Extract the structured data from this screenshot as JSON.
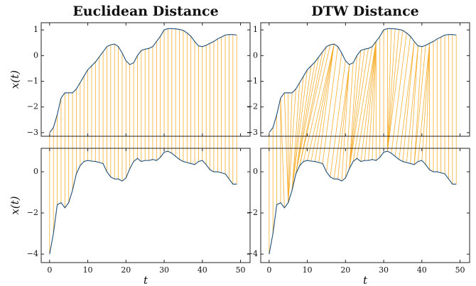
{
  "chart_data": [
    {
      "type": "line",
      "title": "Euclidean Distance",
      "matching": "euclidean",
      "match_color": "#f7ad2a",
      "xlabel": "t",
      "x": [
        0,
        1,
        2,
        3,
        4,
        5,
        6,
        7,
        8,
        9,
        10,
        11,
        12,
        13,
        14,
        15,
        16,
        17,
        18,
        19,
        20,
        21,
        22,
        23,
        24,
        25,
        26,
        27,
        28,
        29,
        30,
        31,
        32,
        33,
        34,
        35,
        36,
        37,
        38,
        39,
        40,
        41,
        42,
        43,
        44,
        45,
        46,
        47,
        48,
        49
      ],
      "xlim": [
        -2.2,
        52.5
      ],
      "xticks": [
        0,
        10,
        20,
        30,
        40,
        50
      ],
      "panels": [
        {
          "ylabel": "x(t)",
          "ylim": [
            -3.14,
            1.28
          ],
          "yticks": [
            {
              "value": -3,
              "label": "−3"
            },
            {
              "value": -2,
              "label": "−2"
            },
            {
              "value": -1,
              "label": "−1"
            },
            0,
            1
          ],
          "series": [
            {
              "color": "#1f4e79",
              "values": [
                -3.0,
                -2.8,
                -2.3,
                -1.65,
                -1.45,
                -1.45,
                -1.45,
                -1.3,
                -1.05,
                -0.8,
                -0.55,
                -0.4,
                -0.25,
                -0.05,
                0.15,
                0.35,
                0.42,
                0.45,
                0.35,
                0.1,
                -0.2,
                -0.35,
                -0.28,
                0.0,
                0.2,
                0.25,
                0.28,
                0.35,
                0.55,
                0.75,
                1.0,
                1.05,
                1.05,
                1.04,
                1.02,
                0.98,
                0.88,
                0.75,
                0.55,
                0.38,
                0.35,
                0.4,
                0.48,
                0.55,
                0.65,
                0.72,
                0.8,
                0.82,
                0.82,
                0.8
              ]
            }
          ]
        },
        {
          "ylabel": "x(t)",
          "ylim": [
            -4.41,
            1.14
          ],
          "yticks": [
            {
              "value": -4,
              "label": "−4"
            },
            {
              "value": -2,
              "label": "−2"
            },
            0
          ],
          "series": [
            {
              "color": "#1f4e79",
              "values": [
                -4.0,
                -3.0,
                -1.6,
                -1.5,
                -1.75,
                -1.5,
                -0.9,
                -0.1,
                0.3,
                0.5,
                0.55,
                0.52,
                0.5,
                0.45,
                0.4,
                0.0,
                -0.25,
                -0.35,
                -0.35,
                -0.45,
                -0.3,
                0.15,
                0.5,
                0.65,
                0.5,
                0.55,
                0.55,
                0.6,
                0.55,
                0.7,
                0.95,
                1.0,
                0.9,
                0.75,
                0.6,
                0.5,
                0.45,
                0.4,
                0.35,
                0.5,
                0.55,
                0.35,
                0.1,
                0.0,
                0.0,
                -0.05,
                -0.1,
                -0.35,
                -0.6,
                -0.6
              ]
            }
          ]
        }
      ]
    },
    {
      "type": "line",
      "title": "DTW Distance",
      "matching": "dtw",
      "match_color": "#f7ad2a",
      "xlabel": "t",
      "x": [
        0,
        1,
        2,
        3,
        4,
        5,
        6,
        7,
        8,
        9,
        10,
        11,
        12,
        13,
        14,
        15,
        16,
        17,
        18,
        19,
        20,
        21,
        22,
        23,
        24,
        25,
        26,
        27,
        28,
        29,
        30,
        31,
        32,
        33,
        34,
        35,
        36,
        37,
        38,
        39,
        40,
        41,
        42,
        43,
        44,
        45,
        46,
        47,
        48,
        49
      ],
      "xlim": [
        -2.2,
        52.5
      ],
      "xticks": [
        0,
        10,
        20,
        30,
        40,
        50
      ],
      "panels": [
        {
          "ylim": [
            -3.14,
            1.28
          ],
          "yticks": [
            {
              "value": -3,
              "label": "−3"
            },
            {
              "value": -2,
              "label": "−2"
            },
            {
              "value": -1,
              "label": "−1"
            },
            0,
            1
          ],
          "series": [
            {
              "color": "#1f4e79",
              "values": [
                -3.0,
                -2.8,
                -2.3,
                -1.65,
                -1.45,
                -1.45,
                -1.45,
                -1.3,
                -1.05,
                -0.8,
                -0.55,
                -0.4,
                -0.25,
                -0.05,
                0.15,
                0.35,
                0.42,
                0.45,
                0.35,
                0.1,
                -0.2,
                -0.35,
                -0.28,
                0.0,
                0.2,
                0.25,
                0.28,
                0.35,
                0.55,
                0.75,
                1.0,
                1.05,
                1.05,
                1.04,
                1.02,
                0.98,
                0.88,
                0.75,
                0.55,
                0.38,
                0.35,
                0.4,
                0.48,
                0.55,
                0.65,
                0.72,
                0.8,
                0.82,
                0.82,
                0.8
              ]
            }
          ]
        },
        {
          "ylim": [
            -4.41,
            1.14
          ],
          "yticks": [
            {
              "value": -4,
              "label": "−4"
            },
            {
              "value": -2,
              "label": "−2"
            },
            0
          ],
          "series": [
            {
              "color": "#1f4e79",
              "values": [
                -4.0,
                -3.0,
                -1.6,
                -1.5,
                -1.75,
                -1.5,
                -0.9,
                -0.1,
                0.3,
                0.5,
                0.55,
                0.52,
                0.5,
                0.45,
                0.4,
                0.0,
                -0.25,
                -0.35,
                -0.35,
                -0.45,
                -0.3,
                0.15,
                0.5,
                0.65,
                0.5,
                0.55,
                0.55,
                0.6,
                0.55,
                0.7,
                0.95,
                1.0,
                0.9,
                0.75,
                0.6,
                0.5,
                0.45,
                0.4,
                0.35,
                0.5,
                0.55,
                0.35,
                0.1,
                0.0,
                0.0,
                -0.05,
                -0.1,
                -0.35,
                -0.6,
                -0.6
              ]
            }
          ]
        }
      ]
    }
  ]
}
